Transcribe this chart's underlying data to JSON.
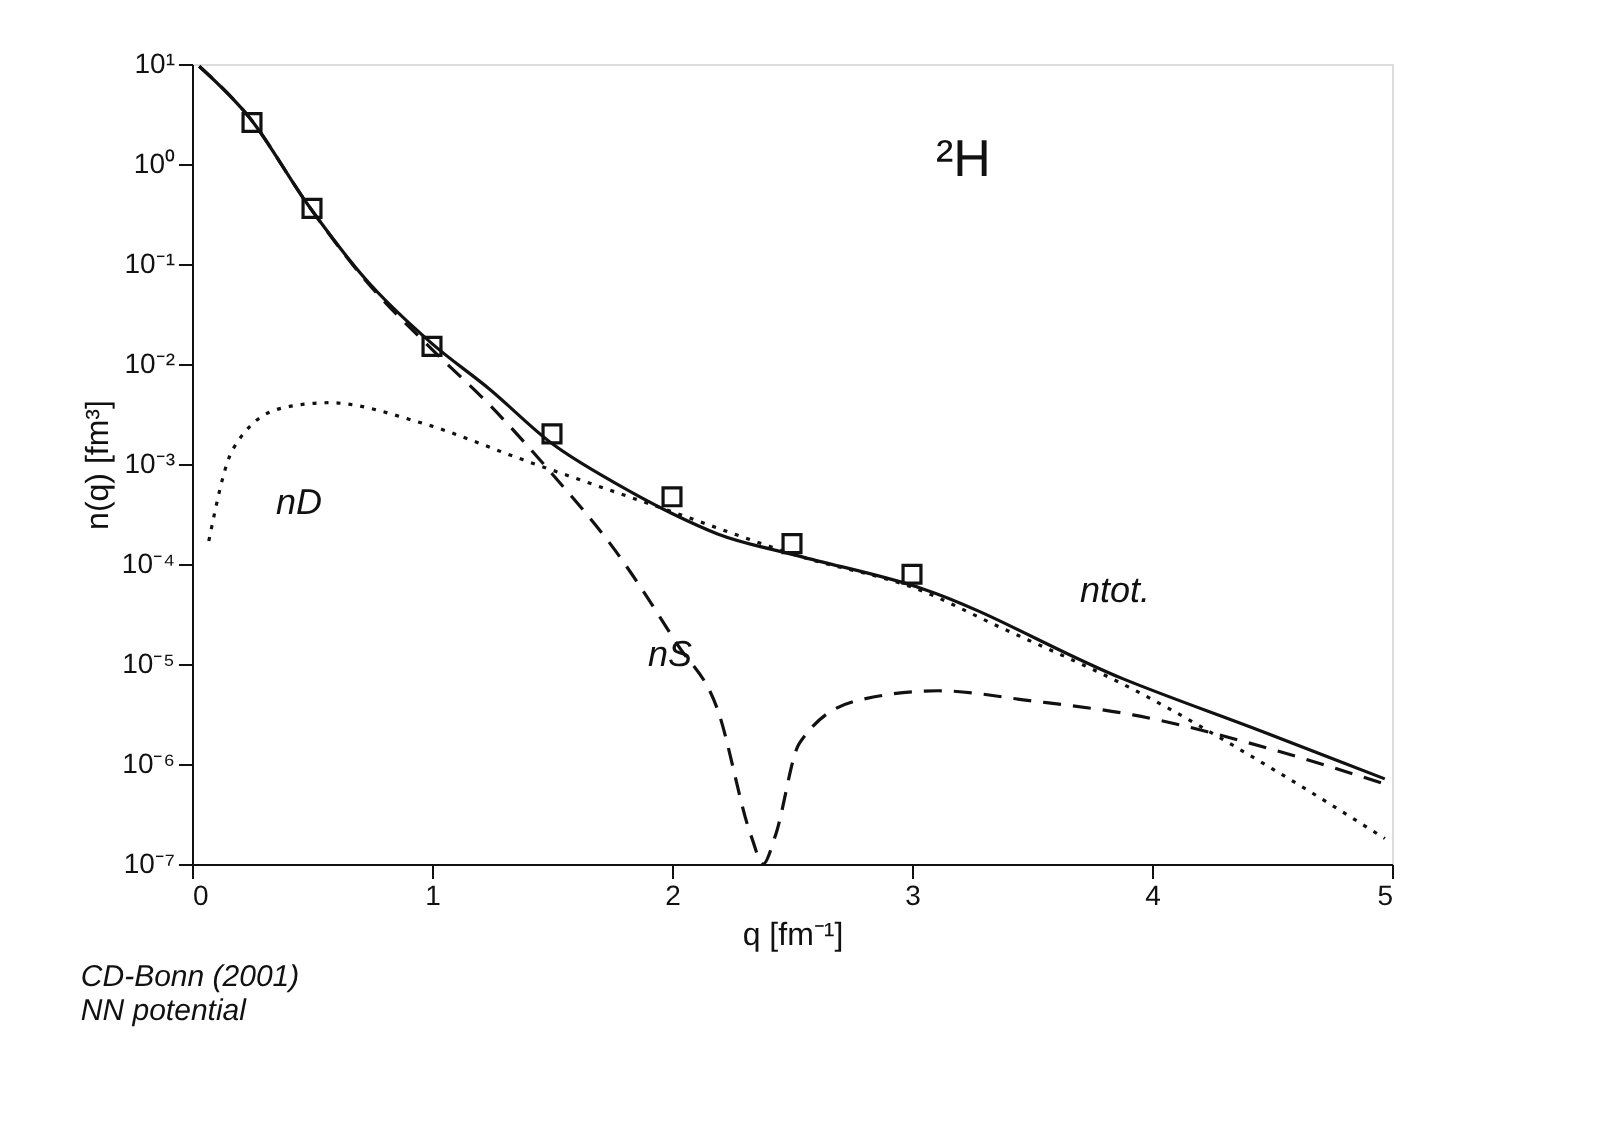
{
  "chart_data": {
    "type": "line",
    "xlabel": "q [fm⁻¹]",
    "ylabel": "n(q) [fm³]",
    "xlim": [
      0,
      5
    ],
    "xticks": [
      0,
      1,
      2,
      3,
      4,
      5
    ],
    "ylim": [
      1e-07,
      10
    ],
    "log": "y",
    "yticks": [
      {
        "value": 1e-07,
        "label": "10⁻⁷"
      },
      {
        "value": 1e-06,
        "label": "10⁻⁶"
      },
      {
        "value": 1e-05,
        "label": "10⁻⁵"
      },
      {
        "value": 0.0001,
        "label": "10⁻⁴"
      },
      {
        "value": 0.001,
        "label": "10⁻³"
      },
      {
        "value": 0.01,
        "label": "10⁻²"
      },
      {
        "value": 0.1,
        "label": "10⁻¹"
      },
      {
        "value": 1,
        "label": "10⁰"
      },
      {
        "value": 10,
        "label": "10¹"
      }
    ],
    "grid": false,
    "series": [
      {
        "line_style": "solid",
        "color": "#111111",
        "x": [
          0.03,
          0.24,
          0.48,
          0.72,
          1.0,
          1.24,
          1.5,
          1.76,
          2.0,
          2.19,
          2.53,
          3.04,
          3.88,
          4.44,
          4.97
        ],
        "values": [
          9.5,
          2.9,
          0.4,
          0.072,
          0.016,
          0.0056,
          0.0016,
          0.00065,
          0.00032,
          0.0002,
          0.00012,
          5.7e-05,
          7.1e-06,
          2.2e-06,
          7.1e-07
        ]
      },
      {
        "line_style": "dashed",
        "color": "#111111",
        "x": [
          0.03,
          0.24,
          0.48,
          0.72,
          1.0,
          1.24,
          1.5,
          1.76,
          2.02,
          2.19,
          2.33,
          2.38,
          2.43,
          2.53,
          2.77,
          3.11,
          3.49,
          3.92,
          4.5,
          4.97
        ],
        "values": [
          9.5,
          2.9,
          0.4,
          0.07,
          0.014,
          0.0039,
          0.0008,
          0.00014,
          1.6e-05,
          3.5e-06,
          1.9e-07,
          1e-07,
          1.9e-07,
          1.6e-06,
          4.3e-06,
          5.4e-06,
          4.3e-06,
          3.1e-06,
          1.4e-06,
          6.3e-07
        ]
      },
      {
        "line_style": "dotted",
        "color": "#111111",
        "x": [
          0.07,
          0.17,
          0.37,
          0.57,
          0.95,
          1.38,
          1.96,
          2.53,
          3.04,
          3.34,
          3.92,
          4.5,
          4.97
        ],
        "values": [
          0.00017,
          0.0014,
          0.0036,
          0.0041,
          0.0026,
          0.0011,
          0.00036,
          0.00012,
          5.4e-05,
          2.5e-05,
          5.6e-06,
          9e-07,
          1.8e-07
        ]
      },
      {
        "type": "scatter",
        "marker": "square",
        "color": "#111111",
        "x": [
          0.25,
          0.5,
          1.0,
          1.5,
          2.0,
          2.5,
          3.0
        ],
        "values": [
          2.6,
          0.36,
          0.015,
          0.002,
          0.00047,
          0.00016,
          7.9e-05
        ]
      }
    ],
    "annotations": [
      "²H",
      "nD",
      "nS",
      "ntot.",
      "CD-Bonn (2001)",
      "NN potential"
    ]
  }
}
